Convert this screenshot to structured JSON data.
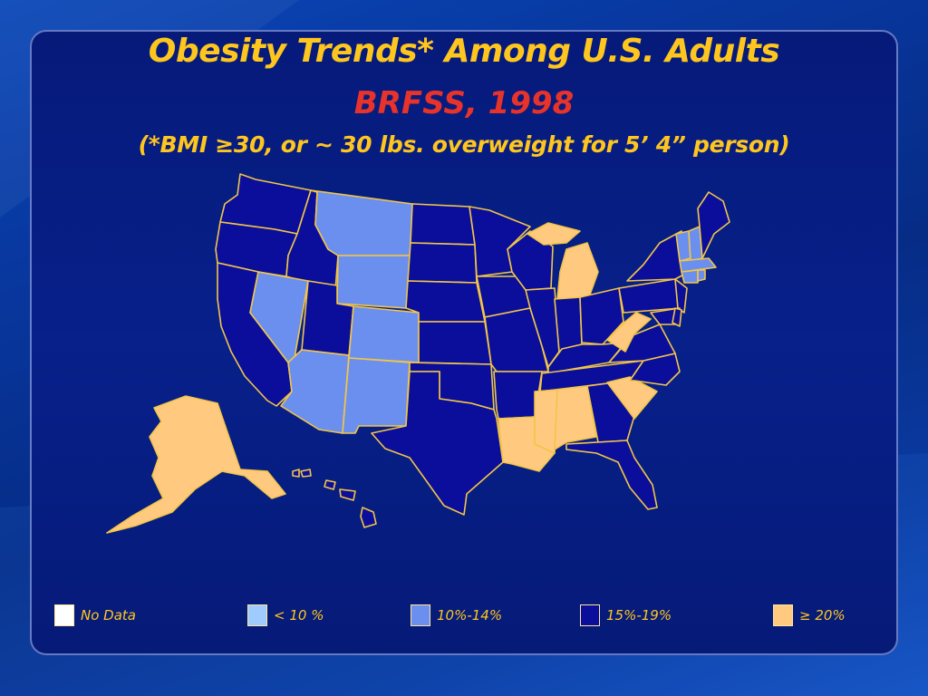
{
  "header": {
    "title": "Obesity Trends* Among U.S. Adults",
    "subtitle": "BRFSS, 1998",
    "note": "(*BMI ≥30, or ~ 30 lbs. overweight for 5’ 4” person)"
  },
  "colors": {
    "no_data": "#ffffff",
    "lt10": "#9fcbff",
    "p10_14": "#6b8fee",
    "p15_19": "#0a0e9a",
    "gte20": "#ffca80",
    "border": "#f2c548",
    "title": "#ffc61e",
    "subtitle": "#e8332a"
  },
  "legend": [
    {
      "key": "no_data",
      "label": "No Data"
    },
    {
      "key": "lt10",
      "label": "< 10 %"
    },
    {
      "key": "p10_14",
      "label": "10%-14%"
    },
    {
      "key": "p15_19",
      "label": "15%-19%"
    },
    {
      "key": "gte20",
      "label": "≥ 20%"
    }
  ],
  "states": {
    "WA": "p15_19",
    "OR": "p15_19",
    "CA": "p15_19",
    "ID": "p15_19",
    "NV": "p10_14",
    "MT": "p10_14",
    "WY": "p10_14",
    "UT": "p15_19",
    "CO": "p10_14",
    "AZ": "p10_14",
    "NM": "p10_14",
    "ND": "p15_19",
    "SD": "p15_19",
    "NE": "p15_19",
    "KS": "p15_19",
    "OK": "p15_19",
    "TX": "p15_19",
    "MN": "p15_19",
    "IA": "p15_19",
    "MO": "p15_19",
    "AR": "p15_19",
    "LA": "gte20",
    "WI": "p15_19",
    "IL": "p15_19",
    "MI": "gte20",
    "IN": "p15_19",
    "OH": "p15_19",
    "KY": "p15_19",
    "TN": "p15_19",
    "MS": "gte20",
    "AL": "gte20",
    "GA": "p15_19",
    "FL": "p15_19",
    "SC": "gte20",
    "NC": "p15_19",
    "VA": "p15_19",
    "WV": "gte20",
    "PA": "p15_19",
    "NY": "p15_19",
    "VT": "p10_14",
    "NH": "p10_14",
    "ME": "p15_19",
    "MA": "p10_14",
    "CT": "p10_14",
    "RI": "p10_14",
    "NJ": "p15_19",
    "DE": "p15_19",
    "MD": "p15_19",
    "AK": "gte20",
    "HI": "p15_19"
  }
}
